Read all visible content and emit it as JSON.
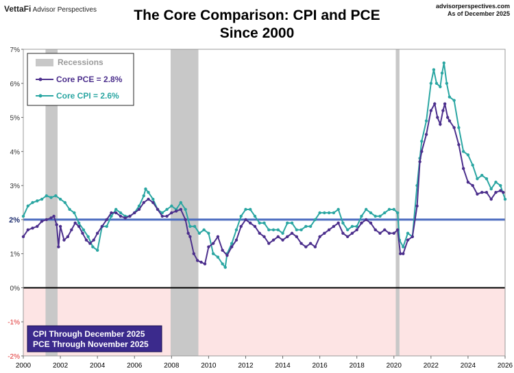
{
  "header": {
    "brand_name": "VettaFi",
    "brand_sub": "Advisor Perspectives",
    "site": "advisorperspectives.com",
    "date_note": "As of December 2025"
  },
  "chart_data": {
    "type": "line",
    "title": "The Core Comparison: CPI and PCE",
    "subtitle": "Since 2000",
    "xlim": [
      2000,
      2026
    ],
    "ylim": [
      -2,
      7
    ],
    "x_ticks": [
      "2000",
      "2002",
      "2004",
      "2006",
      "2008",
      "2010",
      "2012",
      "2014",
      "2016",
      "2018",
      "2020",
      "2022",
      "2024",
      "2026"
    ],
    "y_ticks": [
      {
        "value": 7,
        "label": "7%"
      },
      {
        "value": 6,
        "label": "6%"
      },
      {
        "value": 5,
        "label": "5%"
      },
      {
        "value": 4,
        "label": "4%"
      },
      {
        "value": 3,
        "label": "3%"
      },
      {
        "value": 2,
        "label": "2%"
      },
      {
        "value": 1,
        "label": "1%"
      },
      {
        "value": 0,
        "label": "0%"
      },
      {
        "value": -1,
        "label": "-1%"
      },
      {
        "value": -2,
        "label": "-2%"
      }
    ],
    "reference_line": {
      "value": 2,
      "label": "2%",
      "color": "#4a6bbf"
    },
    "recessions": [
      [
        2001.2,
        2001.85
      ],
      [
        2007.95,
        2009.45
      ],
      [
        2020.1,
        2020.3
      ]
    ],
    "legend": {
      "recessions": "Recessions",
      "pce": "Core PCE = 2.8%",
      "cpi": "Core CPI =  2.6%",
      "position": "top-left"
    },
    "note": [
      "CPI Through December 2025",
      "PCE Through November 2025"
    ],
    "series": [
      {
        "name": "Core PCE",
        "color": "#4b2e8c",
        "points": [
          [
            2000,
            1.5
          ],
          [
            2000.25,
            1.7
          ],
          [
            2000.5,
            1.75
          ],
          [
            2000.75,
            1.8
          ],
          [
            2001,
            1.95
          ],
          [
            2001.25,
            2.0
          ],
          [
            2001.5,
            2.05
          ],
          [
            2001.65,
            2.1
          ],
          [
            2001.8,
            1.85
          ],
          [
            2001.9,
            1.2
          ],
          [
            2002,
            1.8
          ],
          [
            2002.2,
            1.4
          ],
          [
            2002.4,
            1.5
          ],
          [
            2002.6,
            1.7
          ],
          [
            2002.8,
            1.9
          ],
          [
            2003,
            1.8
          ],
          [
            2003.2,
            1.6
          ],
          [
            2003.4,
            1.4
          ],
          [
            2003.6,
            1.3
          ],
          [
            2003.8,
            1.4
          ],
          [
            2004,
            1.6
          ],
          [
            2004.25,
            1.8
          ],
          [
            2004.5,
            2.0
          ],
          [
            2004.75,
            2.2
          ],
          [
            2005,
            2.2
          ],
          [
            2005.25,
            2.1
          ],
          [
            2005.5,
            2.05
          ],
          [
            2005.75,
            2.1
          ],
          [
            2006,
            2.2
          ],
          [
            2006.25,
            2.3
          ],
          [
            2006.5,
            2.5
          ],
          [
            2006.75,
            2.6
          ],
          [
            2007,
            2.5
          ],
          [
            2007.25,
            2.3
          ],
          [
            2007.5,
            2.1
          ],
          [
            2007.75,
            2.1
          ],
          [
            2008,
            2.2
          ],
          [
            2008.25,
            2.25
          ],
          [
            2008.5,
            2.3
          ],
          [
            2008.75,
            2.0
          ],
          [
            2008.9,
            1.6
          ],
          [
            2009,
            1.5
          ],
          [
            2009.2,
            1.0
          ],
          [
            2009.4,
            0.8
          ],
          [
            2009.6,
            0.75
          ],
          [
            2009.8,
            0.7
          ],
          [
            2010,
            1.2
          ],
          [
            2010.25,
            1.3
          ],
          [
            2010.5,
            1.5
          ],
          [
            2010.75,
            1.1
          ],
          [
            2011,
            0.95
          ],
          [
            2011.25,
            1.2
          ],
          [
            2011.5,
            1.4
          ],
          [
            2011.75,
            1.8
          ],
          [
            2012,
            2.0
          ],
          [
            2012.25,
            1.9
          ],
          [
            2012.5,
            1.8
          ],
          [
            2012.75,
            1.6
          ],
          [
            2013,
            1.5
          ],
          [
            2013.25,
            1.3
          ],
          [
            2013.5,
            1.4
          ],
          [
            2013.75,
            1.5
          ],
          [
            2014,
            1.4
          ],
          [
            2014.25,
            1.5
          ],
          [
            2014.5,
            1.6
          ],
          [
            2014.75,
            1.5
          ],
          [
            2015,
            1.3
          ],
          [
            2015.25,
            1.2
          ],
          [
            2015.5,
            1.3
          ],
          [
            2015.75,
            1.2
          ],
          [
            2016,
            1.5
          ],
          [
            2016.25,
            1.6
          ],
          [
            2016.5,
            1.7
          ],
          [
            2016.75,
            1.8
          ],
          [
            2017,
            1.9
          ],
          [
            2017.25,
            1.6
          ],
          [
            2017.5,
            1.5
          ],
          [
            2017.75,
            1.6
          ],
          [
            2018,
            1.7
          ],
          [
            2018.25,
            1.9
          ],
          [
            2018.5,
            2.0
          ],
          [
            2018.75,
            1.9
          ],
          [
            2019,
            1.7
          ],
          [
            2019.25,
            1.6
          ],
          [
            2019.5,
            1.7
          ],
          [
            2019.75,
            1.6
          ],
          [
            2020,
            1.6
          ],
          [
            2020.2,
            1.7
          ],
          [
            2020.35,
            1.0
          ],
          [
            2020.5,
            1.0
          ],
          [
            2020.75,
            1.4
          ],
          [
            2021,
            1.5
          ],
          [
            2021.25,
            2.4
          ],
          [
            2021.4,
            3.7
          ],
          [
            2021.5,
            4.0
          ],
          [
            2021.75,
            4.5
          ],
          [
            2022,
            5.2
          ],
          [
            2022.2,
            5.4
          ],
          [
            2022.35,
            5.0
          ],
          [
            2022.5,
            4.8
          ],
          [
            2022.65,
            5.2
          ],
          [
            2022.75,
            5.4
          ],
          [
            2022.9,
            5.0
          ],
          [
            2023,
            4.9
          ],
          [
            2023.25,
            4.7
          ],
          [
            2023.5,
            4.2
          ],
          [
            2023.75,
            3.5
          ],
          [
            2024,
            3.1
          ],
          [
            2024.25,
            3.0
          ],
          [
            2024.5,
            2.75
          ],
          [
            2024.75,
            2.8
          ],
          [
            2025,
            2.8
          ],
          [
            2025.25,
            2.6
          ],
          [
            2025.5,
            2.8
          ],
          [
            2025.75,
            2.85
          ],
          [
            2025.9,
            2.8
          ]
        ]
      },
      {
        "name": "Core CPI",
        "color": "#2aa6a2",
        "points": [
          [
            2000,
            2.1
          ],
          [
            2000.25,
            2.4
          ],
          [
            2000.5,
            2.5
          ],
          [
            2000.75,
            2.55
          ],
          [
            2001,
            2.6
          ],
          [
            2001.25,
            2.7
          ],
          [
            2001.5,
            2.65
          ],
          [
            2001.75,
            2.7
          ],
          [
            2002,
            2.6
          ],
          [
            2002.25,
            2.5
          ],
          [
            2002.5,
            2.3
          ],
          [
            2002.75,
            2.2
          ],
          [
            2003,
            1.9
          ],
          [
            2003.25,
            1.7
          ],
          [
            2003.5,
            1.5
          ],
          [
            2003.75,
            1.2
          ],
          [
            2004,
            1.1
          ],
          [
            2004.25,
            1.8
          ],
          [
            2004.5,
            1.8
          ],
          [
            2004.75,
            2.1
          ],
          [
            2005,
            2.3
          ],
          [
            2005.25,
            2.2
          ],
          [
            2005.5,
            2.1
          ],
          [
            2005.75,
            2.1
          ],
          [
            2006,
            2.2
          ],
          [
            2006.25,
            2.4
          ],
          [
            2006.5,
            2.7
          ],
          [
            2006.6,
            2.9
          ],
          [
            2006.75,
            2.8
          ],
          [
            2007,
            2.6
          ],
          [
            2007.25,
            2.3
          ],
          [
            2007.5,
            2.2
          ],
          [
            2007.75,
            2.3
          ],
          [
            2008,
            2.4
          ],
          [
            2008.25,
            2.3
          ],
          [
            2008.5,
            2.5
          ],
          [
            2008.75,
            2.3
          ],
          [
            2009,
            1.8
          ],
          [
            2009.25,
            1.8
          ],
          [
            2009.5,
            1.6
          ],
          [
            2009.75,
            1.7
          ],
          [
            2010,
            1.6
          ],
          [
            2010.25,
            1.0
          ],
          [
            2010.5,
            0.9
          ],
          [
            2010.75,
            0.7
          ],
          [
            2010.9,
            0.6
          ],
          [
            2011,
            1.0
          ],
          [
            2011.25,
            1.3
          ],
          [
            2011.5,
            1.7
          ],
          [
            2011.75,
            2.1
          ],
          [
            2012,
            2.3
          ],
          [
            2012.25,
            2.3
          ],
          [
            2012.5,
            2.1
          ],
          [
            2012.75,
            1.9
          ],
          [
            2013,
            1.9
          ],
          [
            2013.25,
            1.7
          ],
          [
            2013.5,
            1.7
          ],
          [
            2013.75,
            1.7
          ],
          [
            2014,
            1.6
          ],
          [
            2014.25,
            1.9
          ],
          [
            2014.5,
            1.9
          ],
          [
            2014.75,
            1.7
          ],
          [
            2015,
            1.7
          ],
          [
            2015.25,
            1.8
          ],
          [
            2015.5,
            1.8
          ],
          [
            2015.75,
            2.0
          ],
          [
            2016,
            2.2
          ],
          [
            2016.25,
            2.2
          ],
          [
            2016.5,
            2.2
          ],
          [
            2016.75,
            2.2
          ],
          [
            2017,
            2.3
          ],
          [
            2017.25,
            1.9
          ],
          [
            2017.5,
            1.7
          ],
          [
            2017.75,
            1.8
          ],
          [
            2018,
            1.8
          ],
          [
            2018.25,
            2.1
          ],
          [
            2018.5,
            2.3
          ],
          [
            2018.75,
            2.2
          ],
          [
            2019,
            2.1
          ],
          [
            2019.25,
            2.1
          ],
          [
            2019.5,
            2.2
          ],
          [
            2019.75,
            2.3
          ],
          [
            2020,
            2.3
          ],
          [
            2020.2,
            2.2
          ],
          [
            2020.3,
            1.4
          ],
          [
            2020.5,
            1.2
          ],
          [
            2020.75,
            1.6
          ],
          [
            2021,
            1.5
          ],
          [
            2021.25,
            3.0
          ],
          [
            2021.4,
            3.8
          ],
          [
            2021.5,
            4.3
          ],
          [
            2021.75,
            4.9
          ],
          [
            2022,
            6.0
          ],
          [
            2022.15,
            6.4
          ],
          [
            2022.3,
            6.0
          ],
          [
            2022.5,
            5.9
          ],
          [
            2022.6,
            6.3
          ],
          [
            2022.7,
            6.6
          ],
          [
            2022.85,
            6.0
          ],
          [
            2023,
            5.6
          ],
          [
            2023.25,
            5.5
          ],
          [
            2023.5,
            4.7
          ],
          [
            2023.75,
            4.0
          ],
          [
            2024,
            3.9
          ],
          [
            2024.25,
            3.6
          ],
          [
            2024.5,
            3.2
          ],
          [
            2024.75,
            3.3
          ],
          [
            2025,
            3.2
          ],
          [
            2025.25,
            2.9
          ],
          [
            2025.5,
            3.1
          ],
          [
            2025.75,
            3.0
          ],
          [
            2026,
            2.6
          ]
        ]
      }
    ]
  }
}
